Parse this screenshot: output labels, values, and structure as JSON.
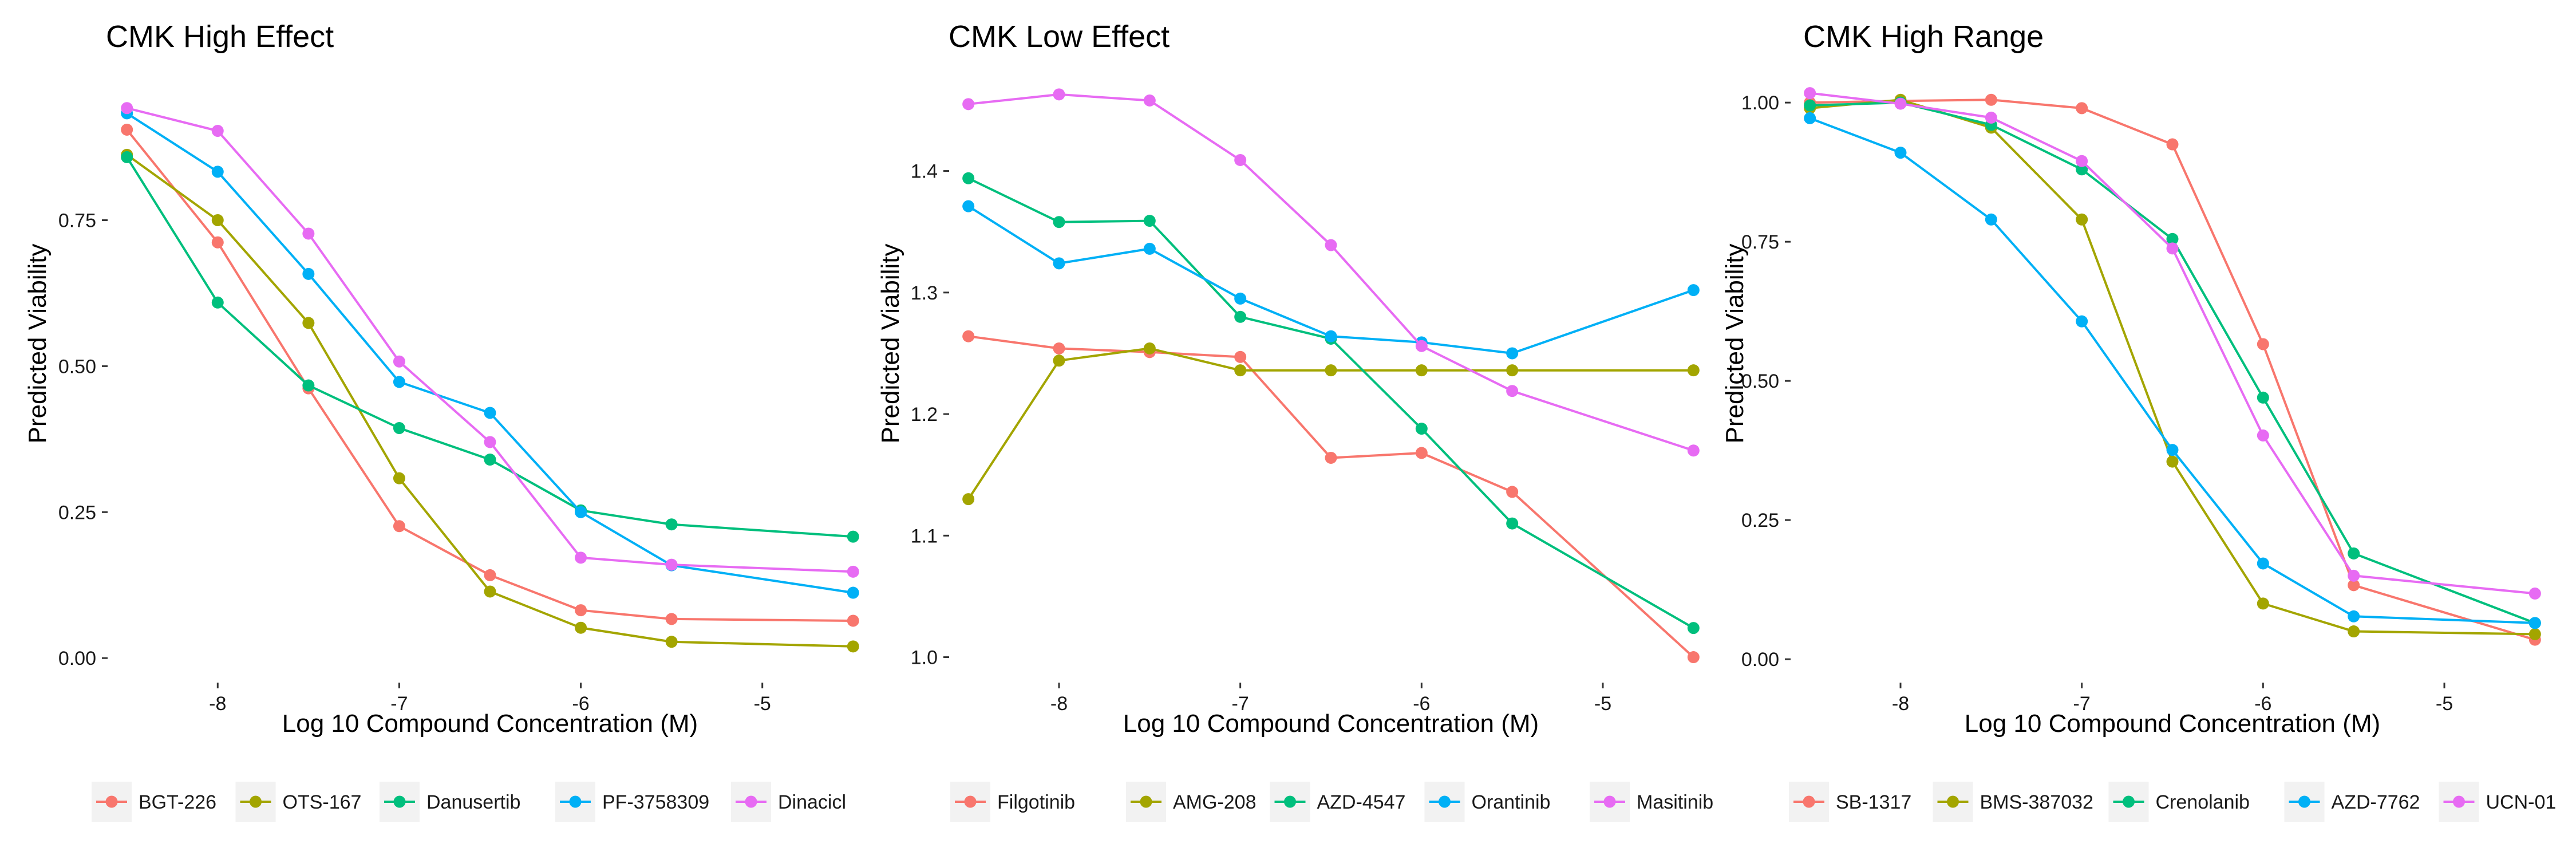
{
  "chart_data": [
    {
      "type": "line",
      "title": "CMK High Effect",
      "xlabel": "Log 10 Compound Concentration (M)",
      "ylabel": "Predicted Viability",
      "xlim": [
        -8.6,
        -4.4
      ],
      "ylim": [
        -0.04,
        0.98
      ],
      "x": [
        -8.5,
        -8.0,
        -7.5,
        -7.0,
        -6.5,
        -6.0,
        -5.5,
        -4.5
      ],
      "xticks": [
        -8,
        -7,
        -6,
        -5
      ],
      "xtick_labels": [
        "-8",
        "-7",
        "-6",
        "-5"
      ],
      "yticks": [
        0.0,
        0.25,
        0.5,
        0.75
      ],
      "ytick_labels": [
        "0.00",
        "0.25",
        "0.50",
        "0.75"
      ],
      "grid": false,
      "legend_position": "bottom",
      "series": [
        {
          "name": "BGT-226",
          "color": "#F8766D",
          "values": [
            0.905,
            0.712,
            0.462,
            0.226,
            0.142,
            0.082,
            0.067,
            0.064
          ]
        },
        {
          "name": "OTS-167",
          "color": "#A3A500",
          "values": [
            0.862,
            0.75,
            0.574,
            0.308,
            0.114,
            0.052,
            0.028,
            0.02
          ]
        },
        {
          "name": "Danusertib",
          "color": "#00BF7D",
          "values": [
            0.858,
            0.609,
            0.467,
            0.394,
            0.34,
            0.253,
            0.229,
            0.208
          ]
        },
        {
          "name": "PF-3758309",
          "color": "#00B0F6",
          "values": [
            0.933,
            0.833,
            0.658,
            0.473,
            0.42,
            0.25,
            0.159,
            0.112
          ]
        },
        {
          "name": "Dinacicl",
          "color": "#E76BF3",
          "values": [
            0.942,
            0.903,
            0.727,
            0.508,
            0.37,
            0.172,
            0.16,
            0.148
          ]
        }
      ]
    },
    {
      "type": "line",
      "title": "CMK Low Effect",
      "xlabel": "Log 10 Compound Concentration (M)",
      "ylabel": "Predicted Viability",
      "xlim": [
        -8.6,
        -4.4
      ],
      "ylim": [
        0.98,
        1.47
      ],
      "x": [
        -8.5,
        -8.0,
        -7.5,
        -7.0,
        -6.5,
        -6.0,
        -5.5,
        -4.5
      ],
      "xticks": [
        -8,
        -7,
        -6,
        -5
      ],
      "xtick_labels": [
        "-8",
        "-7",
        "-6",
        "-5"
      ],
      "yticks": [
        1.0,
        1.1,
        1.2,
        1.3,
        1.4
      ],
      "ytick_labels": [
        "1.0",
        "1.1",
        "1.2",
        "1.3",
        "1.4"
      ],
      "grid": false,
      "legend_position": "bottom",
      "series": [
        {
          "name": "Filgotinib",
          "color": "#F8766D",
          "values": [
            1.264,
            1.254,
            1.251,
            1.247,
            1.164,
            1.168,
            1.136,
            1.0
          ]
        },
        {
          "name": "AMG-208",
          "color": "#A3A500",
          "values": [
            1.13,
            1.244,
            1.254,
            1.236,
            1.236,
            1.236,
            1.236,
            1.236
          ]
        },
        {
          "name": "AZD-4547",
          "color": "#00BF7D",
          "values": [
            1.394,
            1.358,
            1.359,
            1.28,
            1.262,
            1.188,
            1.11,
            1.024
          ]
        },
        {
          "name": "Orantinib",
          "color": "#00B0F6",
          "values": [
            1.371,
            1.324,
            1.336,
            1.295,
            1.264,
            1.259,
            1.25,
            1.302
          ]
        },
        {
          "name": "Masitinib",
          "color": "#E76BF3",
          "values": [
            1.455,
            1.463,
            1.458,
            1.409,
            1.339,
            1.256,
            1.219,
            1.17
          ]
        }
      ]
    },
    {
      "type": "line",
      "title": "CMK High Range",
      "xlabel": "Log 10 Compound Concentration (M)",
      "ylabel": "Predicted Viability",
      "xlim": [
        -8.6,
        -4.4
      ],
      "ylim": [
        -0.04,
        1.03
      ],
      "x": [
        -8.5,
        -8.0,
        -7.5,
        -7.0,
        -6.5,
        -6.0,
        -5.5,
        -4.5
      ],
      "xticks": [
        -8,
        -7,
        -6,
        -5
      ],
      "xtick_labels": [
        "-8",
        "-7",
        "-6",
        "-5"
      ],
      "yticks": [
        0.0,
        0.25,
        0.5,
        0.75,
        1.0
      ],
      "ytick_labels": [
        "0.00",
        "0.25",
        "0.50",
        "0.75",
        "1.00"
      ],
      "grid": false,
      "legend_position": "bottom",
      "series": [
        {
          "name": "SB-1317",
          "color": "#F8766D",
          "values": [
            1.0,
            1.003,
            1.005,
            0.99,
            0.925,
            0.566,
            0.133,
            0.035
          ]
        },
        {
          "name": "BMS-387032",
          "color": "#A3A500",
          "values": [
            0.99,
            1.005,
            0.955,
            0.79,
            0.355,
            0.1,
            0.05,
            0.045
          ]
        },
        {
          "name": "Crenolanib",
          "color": "#00BF7D",
          "values": [
            0.995,
            1.0,
            0.96,
            0.88,
            0.755,
            0.47,
            0.19,
            0.065
          ]
        },
        {
          "name": "AZD-7762",
          "color": "#00B0F6",
          "values": [
            0.972,
            0.91,
            0.79,
            0.607,
            0.376,
            0.172,
            0.077,
            0.065
          ]
        },
        {
          "name": "UCN-01",
          "color": "#E76BF3",
          "values": [
            1.017,
            0.998,
            0.973,
            0.895,
            0.738,
            0.402,
            0.15,
            0.118
          ]
        }
      ]
    }
  ]
}
